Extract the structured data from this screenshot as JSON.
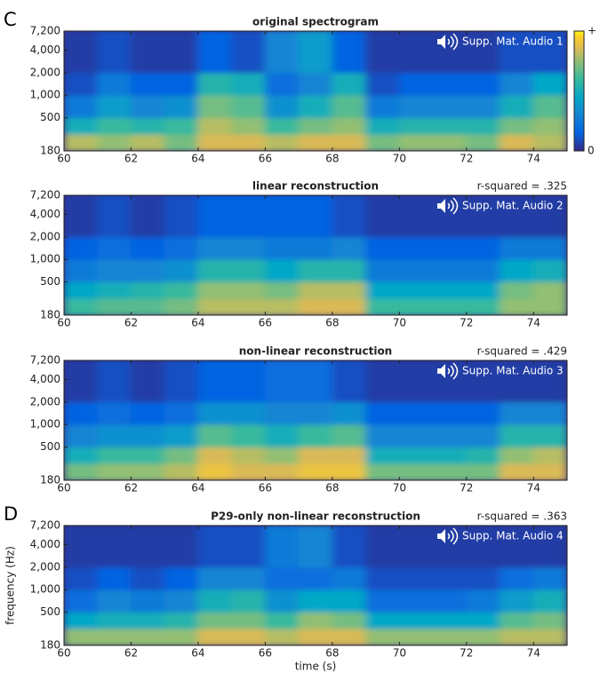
{
  "chart_data": [
    {
      "type": "heatmap",
      "panel_label": "C",
      "title": "original spectrogram",
      "audio_label": "Supp. Mat. Audio 1",
      "xlim": [
        60,
        75
      ],
      "xticks": [
        60,
        62,
        64,
        66,
        68,
        70,
        72,
        74
      ],
      "ylim": [
        180,
        7200
      ],
      "y_log": true,
      "yticks": [
        180,
        500,
        {
          "value": 1000,
          "label": "1,000"
        },
        {
          "value": 2000,
          "label": "2,000"
        },
        {
          "value": 4000,
          "label": "4,000"
        },
        {
          "value": 7200,
          "label": "7,200"
        }
      ],
      "x_bins": [
        60,
        61,
        62,
        63,
        64,
        65,
        66,
        67,
        68,
        69,
        70,
        71,
        72,
        73,
        74,
        75
      ],
      "y_bins": [
        180,
        300,
        500,
        1000,
        2000,
        7200
      ],
      "z": [
        [
          0.8,
          0.75,
          0.8,
          0.7,
          0.85,
          0.85,
          0.8,
          0.85,
          0.85,
          0.7,
          0.75,
          0.75,
          0.7,
          0.85,
          0.8
        ],
        [
          0.5,
          0.6,
          0.55,
          0.6,
          0.8,
          0.75,
          0.6,
          0.7,
          0.75,
          0.5,
          0.55,
          0.55,
          0.55,
          0.7,
          0.75
        ],
        [
          0.25,
          0.4,
          0.3,
          0.35,
          0.7,
          0.65,
          0.35,
          0.5,
          0.65,
          0.25,
          0.3,
          0.3,
          0.3,
          0.5,
          0.65
        ],
        [
          0.1,
          0.25,
          0.15,
          0.15,
          0.55,
          0.5,
          0.2,
          0.3,
          0.5,
          0.1,
          0.15,
          0.15,
          0.15,
          0.3,
          0.45
        ],
        [
          0.05,
          0.1,
          0.05,
          0.05,
          0.15,
          0.1,
          0.3,
          0.4,
          0.15,
          0.05,
          0.05,
          0.05,
          0.05,
          0.1,
          0.1
        ]
      ],
      "colorbar": {
        "lim": [
          0,
          1
        ],
        "ticks": [
          0,
          {
            "value": 1,
            "label": "+"
          }
        ]
      }
    },
    {
      "type": "heatmap",
      "title": "linear reconstruction",
      "annotation": "r-squared = .325",
      "audio_label": "Supp. Mat. Audio 2",
      "xlim": [
        60,
        75
      ],
      "xticks": [
        60,
        62,
        64,
        66,
        68,
        70,
        72,
        74
      ],
      "ylim": [
        180,
        7200
      ],
      "y_log": true,
      "yticks": [
        180,
        500,
        {
          "value": 1000,
          "label": "1,000"
        },
        {
          "value": 2000,
          "label": "2,000"
        },
        {
          "value": 4000,
          "label": "4,000"
        },
        {
          "value": 7200,
          "label": "7,200"
        }
      ],
      "x_bins": [
        60,
        61,
        62,
        63,
        64,
        65,
        66,
        67,
        68,
        69,
        70,
        71,
        72,
        73,
        74,
        75
      ],
      "y_bins": [
        180,
        300,
        500,
        1000,
        2000,
        7200
      ],
      "z": [
        [
          0.6,
          0.65,
          0.65,
          0.7,
          0.8,
          0.8,
          0.8,
          0.85,
          0.85,
          0.6,
          0.6,
          0.6,
          0.6,
          0.75,
          0.75
        ],
        [
          0.45,
          0.5,
          0.55,
          0.6,
          0.75,
          0.75,
          0.7,
          0.8,
          0.8,
          0.45,
          0.45,
          0.45,
          0.45,
          0.7,
          0.75
        ],
        [
          0.25,
          0.3,
          0.3,
          0.35,
          0.55,
          0.55,
          0.45,
          0.55,
          0.55,
          0.25,
          0.25,
          0.25,
          0.25,
          0.45,
          0.5
        ],
        [
          0.15,
          0.2,
          0.15,
          0.2,
          0.3,
          0.3,
          0.25,
          0.25,
          0.3,
          0.15,
          0.15,
          0.15,
          0.15,
          0.25,
          0.25
        ],
        [
          0.05,
          0.1,
          0.05,
          0.1,
          0.15,
          0.15,
          0.15,
          0.15,
          0.1,
          0.05,
          0.05,
          0.05,
          0.05,
          0.05,
          0.05
        ]
      ]
    },
    {
      "type": "heatmap",
      "title": "non-linear reconstruction",
      "annotation": "r-squared = .429",
      "audio_label": "Supp. Mat. Audio 3",
      "xlim": [
        60,
        75
      ],
      "xticks": [
        60,
        62,
        64,
        66,
        68,
        70,
        72,
        74
      ],
      "ylim": [
        180,
        7200
      ],
      "y_log": true,
      "yticks": [
        180,
        500,
        {
          "value": 1000,
          "label": "1,000"
        },
        {
          "value": 2000,
          "label": "2,000"
        },
        {
          "value": 4000,
          "label": "4,000"
        },
        {
          "value": 7200,
          "label": "7,200"
        }
      ],
      "x_bins": [
        60,
        61,
        62,
        63,
        64,
        65,
        66,
        67,
        68,
        69,
        70,
        71,
        72,
        73,
        74,
        75
      ],
      "y_bins": [
        180,
        300,
        500,
        1000,
        2000,
        7200
      ],
      "z": [
        [
          0.7,
          0.75,
          0.75,
          0.8,
          0.9,
          0.85,
          0.85,
          0.9,
          0.9,
          0.7,
          0.7,
          0.7,
          0.7,
          0.85,
          0.85
        ],
        [
          0.5,
          0.6,
          0.6,
          0.7,
          0.85,
          0.8,
          0.75,
          0.85,
          0.85,
          0.5,
          0.5,
          0.5,
          0.55,
          0.75,
          0.8
        ],
        [
          0.3,
          0.35,
          0.35,
          0.4,
          0.65,
          0.6,
          0.5,
          0.6,
          0.65,
          0.3,
          0.3,
          0.3,
          0.3,
          0.55,
          0.55
        ],
        [
          0.15,
          0.2,
          0.15,
          0.2,
          0.35,
          0.35,
          0.3,
          0.3,
          0.35,
          0.15,
          0.15,
          0.15,
          0.15,
          0.3,
          0.3
        ],
        [
          0.05,
          0.1,
          0.05,
          0.1,
          0.15,
          0.15,
          0.2,
          0.2,
          0.1,
          0.05,
          0.05,
          0.05,
          0.05,
          0.05,
          0.05
        ]
      ]
    },
    {
      "type": "heatmap",
      "panel_label": "D",
      "title": "P29-only non-linear reconstruction",
      "annotation": "r-squared = .363",
      "audio_label": "Supp. Mat. Audio 4",
      "xlim": [
        60,
        75
      ],
      "xticks": [
        60,
        62,
        64,
        66,
        68,
        70,
        72,
        74
      ],
      "ylim": [
        180,
        7200
      ],
      "y_log": true,
      "yticks": [
        180,
        500,
        {
          "value": 1000,
          "label": "1,000"
        },
        {
          "value": 2000,
          "label": "2,000"
        },
        {
          "value": 4000,
          "label": "4,000"
        },
        {
          "value": 7200,
          "label": "7,200"
        }
      ],
      "xlabel": "time (s)",
      "ylabel": "frequency (Hz)",
      "x_bins": [
        60,
        61,
        62,
        63,
        64,
        65,
        66,
        67,
        68,
        69,
        70,
        71,
        72,
        73,
        74,
        75
      ],
      "y_bins": [
        180,
        300,
        500,
        1000,
        2000,
        7200
      ],
      "z": [
        [
          0.75,
          0.75,
          0.75,
          0.75,
          0.85,
          0.85,
          0.8,
          0.85,
          0.85,
          0.75,
          0.75,
          0.75,
          0.75,
          0.8,
          0.8
        ],
        [
          0.45,
          0.5,
          0.5,
          0.55,
          0.7,
          0.7,
          0.6,
          0.75,
          0.7,
          0.45,
          0.45,
          0.45,
          0.45,
          0.65,
          0.7
        ],
        [
          0.2,
          0.3,
          0.25,
          0.3,
          0.5,
          0.55,
          0.35,
          0.45,
          0.45,
          0.2,
          0.2,
          0.2,
          0.25,
          0.4,
          0.5
        ],
        [
          0.1,
          0.15,
          0.1,
          0.15,
          0.3,
          0.3,
          0.2,
          0.2,
          0.25,
          0.1,
          0.1,
          0.1,
          0.1,
          0.2,
          0.25
        ],
        [
          0.05,
          0.05,
          0.05,
          0.05,
          0.1,
          0.1,
          0.25,
          0.3,
          0.1,
          0.05,
          0.05,
          0.05,
          0.05,
          0.05,
          0.05
        ]
      ]
    }
  ]
}
